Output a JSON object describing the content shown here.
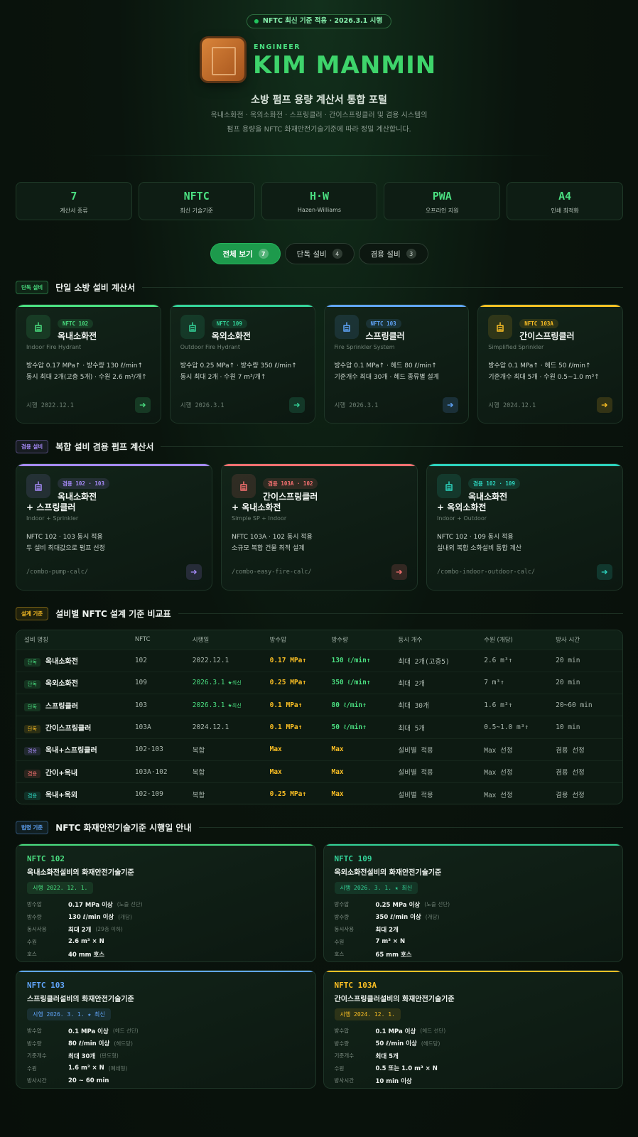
{
  "header": {
    "badge": "NFTC 최신 기준 적용 · 2026.3.1 시행",
    "eyebrow": "ENGINEER",
    "title": "KIM MANMIN",
    "subtitle": "소방 펌프 용량 계산서 통합 포털",
    "description": [
      "옥내소화전 · 옥외소화전 · 스프링클러 · 간이스프링클러 및 겸용 시스템의",
      "펌프 용량을 NFTC 화재안전기술기준에 따라 정밀 계산합니다."
    ]
  },
  "stats": [
    {
      "value": "7",
      "label": "계산서 종류"
    },
    {
      "value": "NFTC",
      "label": "최신 기술기준"
    },
    {
      "value": "H·W",
      "label": "Hazen-Williams"
    },
    {
      "value": "PWA",
      "label": "오프라인 지원"
    },
    {
      "value": "A4",
      "label": "인쇄 최적화"
    }
  ],
  "tabs": [
    {
      "label": "전체 보기",
      "count": 7,
      "active": true
    },
    {
      "label": "단독 설비",
      "count": 4
    },
    {
      "label": "겸용 설비",
      "count": 3
    }
  ],
  "single": {
    "tag": "단독 설비",
    "title": "단일 소방 설비 계산서",
    "cards": [
      {
        "code": "NFTC 102",
        "name": "옥내소화전",
        "en": "Indoor Fire Hydrant",
        "lines": [
          "방수압 0.17 MPa↑ · 방수량 130 ℓ/min↑",
          "동시 최대 2개(고층 5개) · 수원 2.6 m³/개↑"
        ],
        "date": "시행 2022.12.1",
        "color": "#4ade80"
      },
      {
        "code": "NFTC 109",
        "name": "옥외소화전",
        "en": "Outdoor Fire Hydrant",
        "lines": [
          "방수압 0.25 MPa↑ · 방수량 350 ℓ/min↑",
          "동시 최대 2개 · 수원 7 m³/개↑"
        ],
        "date": "시행 2026.3.1",
        "color": "#34d399"
      },
      {
        "code": "NFTC 103",
        "name": "스프링클러",
        "en": "Fire Sprinkler System",
        "lines": [
          "방수압 0.1 MPa↑ · 헤드 80 ℓ/min↑",
          "기준개수 최대 30개 · 헤드 종류별 설계"
        ],
        "date": "시행 2026.3.1",
        "color": "#60a5fa"
      },
      {
        "code": "NFTC 103A",
        "name": "간이스프링클러",
        "en": "Simplified Sprinkler",
        "lines": [
          "방수압 0.1 MPa↑ · 헤드 50 ℓ/min↑",
          "기준개수 최대 5개 · 수원 0.5~1.0 m³↑"
        ],
        "date": "시행 2024.12.1",
        "color": "#fbbf24"
      }
    ]
  },
  "combo": {
    "tag": "겸용 설비",
    "title": "복합 설비 겸용 펌프 계산서",
    "cards": [
      {
        "code": "겸용 102 · 103",
        "name": [
          "옥내소화전",
          "+ 스프링클러"
        ],
        "en": "Indoor + Sprinkler",
        "lines": [
          "NFTC 102 · 103 동시 적용",
          "두 설비 최대값으로 펌프 선정"
        ],
        "path": "/combo-pump-calc/",
        "color": "#a78bfa"
      },
      {
        "code": "겸용 103A · 102",
        "name": [
          "간이스프링클러",
          "+ 옥내소화전"
        ],
        "en": "Simple SP + Indoor",
        "lines": [
          "NFTC 103A · 102 동시 적용",
          "소규모 복합 건물 최적 설계"
        ],
        "path": "/combo-easy-fire-calc/",
        "color": "#f87171"
      },
      {
        "code": "겸용 102 · 109",
        "name": [
          "옥내소화전",
          "+ 옥외소화전"
        ],
        "en": "Indoor + Outdoor",
        "lines": [
          "NFTC 102 · 109 동시 적용",
          "실내외 복합 소화설비 통합 계산"
        ],
        "path": "/combo-indoor-outdoor-calc/",
        "color": "#2dd4bf"
      }
    ]
  },
  "table": {
    "tag": "설계 기준",
    "title": "설비별 NFTC 설계 기준 비교표",
    "headers": [
      "설비 명칭",
      "NFTC",
      "시행일",
      "방수압",
      "방수량",
      "동시 개수",
      "수원 (개당)",
      "방사 시간"
    ],
    "rows": [
      {
        "tag": "단독",
        "color": "#4ade80",
        "cells": [
          "옥내소화전",
          "102",
          "2022.12.1",
          "0.17 MPa↑",
          "130 ℓ/min↑",
          "최대 2개(고층5)",
          "2.6 m³↑",
          "20 min"
        ]
      },
      {
        "tag": "단독",
        "color": "#4ade80",
        "cells": [
          "옥외소화전",
          "109",
          "2026.3.1",
          "0.25 MPa↑",
          "350 ℓ/min↑",
          "최대 2개",
          "7 m³↑",
          "20 min"
        ],
        "latest": "★최신"
      },
      {
        "tag": "단독",
        "color": "#4ade80",
        "cells": [
          "스프링클러",
          "103",
          "2026.3.1",
          "0.1 MPa↑",
          "80 ℓ/min↑",
          "최대 30개",
          "1.6 m³↑",
          "20~60 min"
        ],
        "latest": "★최신"
      },
      {
        "tag": "단독",
        "color": "#fbbf24",
        "cells": [
          "간이스프링클러",
          "103A",
          "2024.12.1",
          "0.1 MPa↑",
          "50 ℓ/min↑",
          "최대 5개",
          "0.5~1.0 m³↑",
          "10 min"
        ]
      },
      {
        "tag": "겸용",
        "color": "#a78bfa",
        "cells": [
          "옥내+스프링클러",
          "102·103",
          "복합",
          "Max",
          "Max",
          "설비별 적용",
          "Max 선정",
          "겸용 선정"
        ]
      },
      {
        "tag": "겸용",
        "color": "#f87171",
        "cells": [
          "간이+옥내",
          "103A·102",
          "복합",
          "Max",
          "Max",
          "설비별 적용",
          "Max 선정",
          "겸용 선정"
        ]
      },
      {
        "tag": "겸용",
        "color": "#2dd4bf",
        "cells": [
          "옥내+옥외",
          "102·109",
          "복합",
          "0.25 MPa↑",
          "Max",
          "설비별 적용",
          "Max 선정",
          "겸용 선정"
        ]
      }
    ]
  },
  "laws": {
    "tag": "법령 기준",
    "title": "NFTC 화재안전기술기준 시행일 안내",
    "cards": [
      {
        "code": "NFTC 102",
        "title": "옥내소화전설비의 화재안전기술기준",
        "date": "시행 2022. 12. 1.",
        "color": "#4ade80",
        "items": [
          {
            "label": "방수압",
            "value": "0.17 MPa 이상",
            "note": "(노즐 선단)"
          },
          {
            "label": "방수량",
            "value": "130 ℓ/min 이상",
            "note": "(개당)"
          },
          {
            "label": "동시사용",
            "value": "최대 2개",
            "note": "(29층 이하)"
          },
          {
            "label": "수원",
            "value": "2.6 m³ × N"
          },
          {
            "label": "호스",
            "value": "40 mm 호스"
          }
        ]
      },
      {
        "code": "NFTC 109",
        "title": "옥외소화전설비의 화재안전기술기준",
        "date": "시행 2026. 3. 1. ★ 최신",
        "color": "#34d399",
        "items": [
          {
            "label": "방수압",
            "value": "0.25 MPa 이상",
            "note": "(노즐 선단)"
          },
          {
            "label": "방수량",
            "value": "350 ℓ/min 이상",
            "note": "(개당)"
          },
          {
            "label": "동시사용",
            "value": "최대 2개"
          },
          {
            "label": "수원",
            "value": "7 m³ × N"
          },
          {
            "label": "호스",
            "value": "65 mm 호스"
          }
        ]
      },
      {
        "code": "NFTC 103",
        "title": "스프링클러설비의 화재안전기술기준",
        "date": "시행 2026. 3. 1. ★ 최신",
        "color": "#60a5fa",
        "items": [
          {
            "label": "방수압",
            "value": "0.1 MPa 이상",
            "note": "(헤드 선단)"
          },
          {
            "label": "방수량",
            "value": "80 ℓ/min 이상",
            "note": "(헤드당)"
          },
          {
            "label": "기준개수",
            "value": "최대 30개",
            "note": "(판도형)"
          },
          {
            "label": "수원",
            "value": "1.6 m³ × N",
            "note": "(폐쇄형)"
          },
          {
            "label": "방사시간",
            "value": "20 ~ 60 min"
          }
        ]
      },
      {
        "code": "NFTC 103A",
        "title": "간이스프링클러설비의 화재안전기술기준",
        "date": "시행 2024. 12. 1.",
        "color": "#fbbf24",
        "items": [
          {
            "label": "방수압",
            "value": "0.1 MPa 이상",
            "note": "(헤드 선단)"
          },
          {
            "label": "방수량",
            "value": "50 ℓ/min 이상",
            "note": "(헤드당)"
          },
          {
            "label": "기준개수",
            "value": "최대 5개"
          },
          {
            "label": "수원",
            "value": "0.5 또는 1.0 m³ × N"
          },
          {
            "label": "방사시간",
            "value": "10 min 이상"
          }
        ]
      }
    ]
  }
}
